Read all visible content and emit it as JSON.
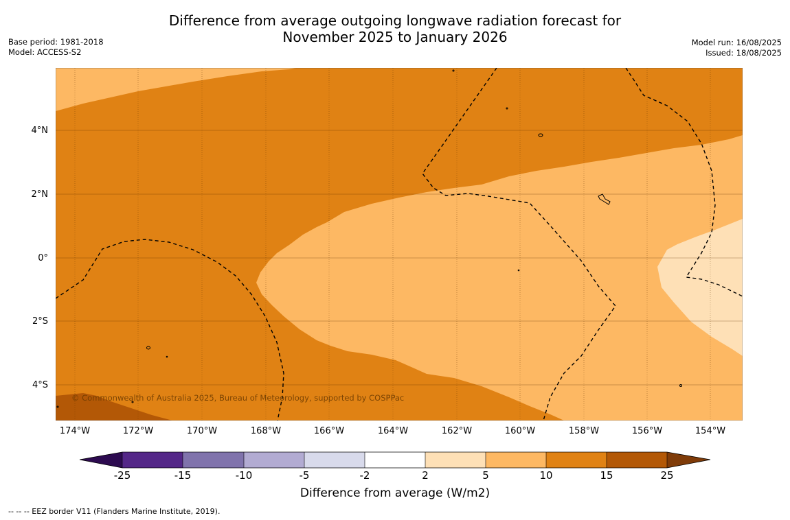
{
  "title": {
    "line1": "Difference from average outgoing longwave radiation forecast for",
    "line2": "November 2025 to January 2026"
  },
  "meta_left": {
    "base_period": "Base period: 1981-2018",
    "model": "Model: ACCESS-S2"
  },
  "meta_right": {
    "model_run": "Model run: 16/08/2025",
    "issued": "Issued: 18/08/2025"
  },
  "map": {
    "lat_labels": [
      "4°N",
      "2°N",
      "0°",
      "2°S",
      "4°S"
    ],
    "lon_labels": [
      "174°W",
      "172°W",
      "170°W",
      "168°W",
      "166°W",
      "164°W",
      "162°W",
      "160°W",
      "158°W",
      "156°W",
      "154°W"
    ],
    "copyright": "© Commonwealth of Australia 2025, Bureau of Meteorology, supported by COSPPac"
  },
  "colorbar": {
    "ticks": [
      "-25",
      "-15",
      "-10",
      "-5",
      "-2",
      "2",
      "5",
      "10",
      "15",
      "25"
    ],
    "colors": [
      "#2d0b50",
      "#542788",
      "#8073ac",
      "#b2abd2",
      "#d8daeb",
      "#ffffff",
      "#fee0b6",
      "#fdb863",
      "#e08214",
      "#b35806",
      "#7f3b08"
    ],
    "label": "Difference from average (W/m2)"
  },
  "footer": "-- -- -- EEZ border V11 (Flanders Marine Institute, 2019)."
}
